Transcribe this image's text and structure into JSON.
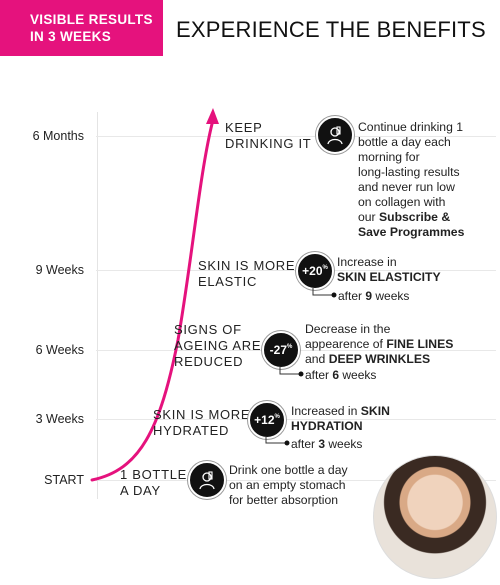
{
  "badge": {
    "line1": "VISIBLE RESULTS",
    "line2": "IN 3 WEEKS"
  },
  "heading": "EXPERIENCE THE BENEFITS",
  "axis_labels": [
    "6 Months",
    "9 Weeks",
    "6 Weeks",
    "3 Weeks",
    "START"
  ],
  "stages": {
    "keep": {
      "line1": "KEEP",
      "line2": "DRINKING IT",
      "desc_lines": [
        "Continue drinking 1",
        "bottle a day each",
        "morning for",
        "long-lasting results",
        "and never run low",
        "on collagen with"
      ],
      "desc_prefix": "our ",
      "desc_bold1": "Subscribe &",
      "desc_bold2": "Save Programmes"
    },
    "elastic": {
      "line1": "SKIN IS MORE",
      "line2": "ELASTIC",
      "pct": "+20",
      "pct_sup": "%",
      "desc1": "Increase in",
      "desc_bold": "SKIN ELASTICITY",
      "after_prefix": "after ",
      "after_bold": "9",
      "after_suffix": " weeks"
    },
    "lines": {
      "line1": "SIGNS OF",
      "line2": "AGEING ARE",
      "line3": "REDUCED",
      "pct": "-27",
      "pct_sup": "%",
      "desc1": "Decrease in the",
      "desc2_prefix": "appearence of ",
      "desc2_bold": "FINE LINES",
      "desc3_prefix": "and ",
      "desc3_bold": "DEEP WRINKLES",
      "after_prefix": "after ",
      "after_bold": "6",
      "after_suffix": " weeks"
    },
    "hydrated": {
      "line1": "SKIN IS MORE",
      "line2": "HYDRATED",
      "pct": "+12",
      "pct_sup": "%",
      "desc1_prefix": "Increased in ",
      "desc1_bold": "SKIN",
      "desc2_bold": "HYDRATION",
      "after_prefix": "after ",
      "after_bold": "3",
      "after_suffix": " weeks"
    },
    "start": {
      "line1": "1 BOTTLE",
      "line2": "A DAY",
      "desc_lines": [
        "Drink one bottle a day",
        "on an empty stomach",
        "for better absorption"
      ]
    }
  },
  "colors": {
    "accent": "#e5127d",
    "circle": "#111111",
    "grid": "#e8e8e8"
  },
  "icons": {
    "keep": "woman-drinking-icon",
    "start": "woman-drinking-icon"
  }
}
